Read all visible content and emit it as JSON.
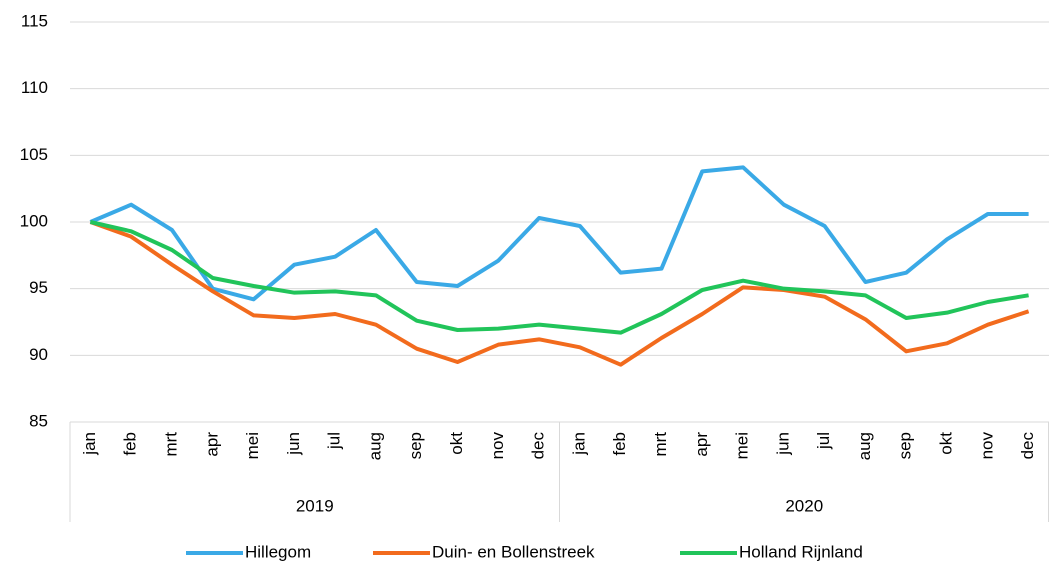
{
  "chart_data": {
    "type": "line",
    "categories": [
      "jan",
      "feb",
      "mrt",
      "apr",
      "mei",
      "jun",
      "jul",
      "aug",
      "sep",
      "okt",
      "nov",
      "dec",
      "jan",
      "feb",
      "mrt",
      "apr",
      "mei",
      "jun",
      "jul",
      "aug",
      "sep",
      "okt",
      "nov",
      "dec"
    ],
    "category_groups": [
      "2019",
      "2020"
    ],
    "series": [
      {
        "name": "Hillegom",
        "color": "#3aa9e6",
        "values": [
          100,
          101.3,
          99.4,
          95.0,
          94.2,
          96.8,
          97.4,
          99.4,
          95.5,
          95.2,
          97.1,
          100.3,
          99.7,
          96.2,
          96.5,
          103.8,
          104.1,
          101.3,
          99.7,
          95.5,
          96.2,
          98.7,
          100.6,
          100.6
        ]
      },
      {
        "name": "Duin- en Bollenstreek",
        "color": "#f26b1d",
        "values": [
          100,
          98.9,
          96.8,
          94.8,
          93.0,
          92.8,
          93.1,
          92.3,
          90.5,
          89.5,
          90.8,
          91.2,
          90.6,
          89.3,
          91.3,
          93.1,
          95.1,
          94.9,
          94.4,
          92.7,
          90.3,
          90.9,
          92.3,
          93.3
        ]
      },
      {
        "name": "Holland Rijnland",
        "color": "#21c45a",
        "values": [
          100,
          99.3,
          97.9,
          95.8,
          95.2,
          94.7,
          94.8,
          94.5,
          92.6,
          91.9,
          92.0,
          92.3,
          92.0,
          91.7,
          93.1,
          94.9,
          95.6,
          95.0,
          94.8,
          94.5,
          92.8,
          93.2,
          94.0,
          94.5
        ]
      }
    ],
    "ylim": [
      85,
      115
    ],
    "yticks": [
      85,
      90,
      95,
      100,
      105,
      110,
      115
    ],
    "grid": true,
    "legend": "bottom"
  }
}
